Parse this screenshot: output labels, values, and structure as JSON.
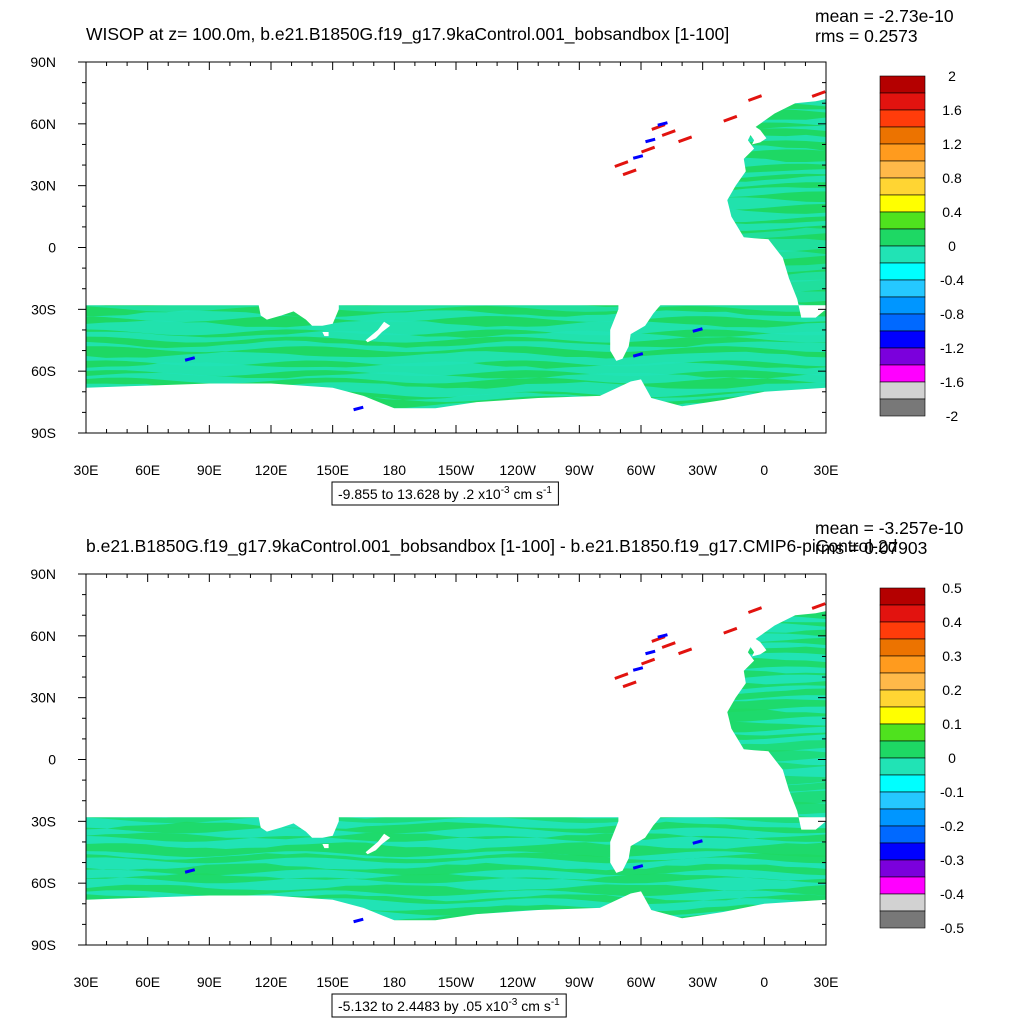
{
  "chart_data": [
    {
      "type": "heatmap",
      "title": "WISOP at z= 100.0m, b.e21.B1850G.f19_g17.9kaControl.001_bobsandbox [1-100]",
      "stats": {
        "mean": "mean = -2.73e-10",
        "rms": "rms = 0.2573"
      },
      "x_ticks": [
        "30E",
        "60E",
        "90E",
        "120E",
        "150E",
        "180",
        "150W",
        "120W",
        "90W",
        "60W",
        "30W",
        "0",
        "30E"
      ],
      "y_ticks": [
        "90N",
        "60N",
        "30N",
        "0",
        "30S",
        "60S",
        "90S"
      ],
      "colorbar": {
        "labels": [
          "2",
          "1.6",
          "1.2",
          "0.8",
          "0.4",
          "0",
          "-0.4",
          "-0.8",
          "-1.2",
          "-1.6",
          "-2"
        ],
        "colors": [
          "#b40000",
          "#e2130f",
          "#ff3c0a",
          "#ec7300",
          "#ff9b1e",
          "#ffb949",
          "#ffd533",
          "#ffff00",
          "#4fe21e",
          "#1ed864",
          "#21e3b5",
          "#00ffff",
          "#25c8ff",
          "#0096ff",
          "#0069ff",
          "#0000ff",
          "#7b00dc",
          "#ff00ff",
          "#d2d2d2",
          "#787878"
        ]
      },
      "range_caption": {
        "text": "-9.855 to 13.628 by .2 x10",
        "exp": "-3",
        "unit": " cm s",
        "unit_exp": "-1"
      },
      "base_color": "#1ed864",
      "secondary_color": "#21e3b5"
    },
    {
      "type": "heatmap",
      "title": "b.e21.B1850G.f19_g17.9kaControl.001_bobsandbox [1-100] - b.e21.B1850.f19_g17.CMIP6-piControl-2d",
      "stats": {
        "mean": "mean = -3.257e-10",
        "rms": "rms = 0.07903"
      },
      "x_ticks": [
        "30E",
        "60E",
        "90E",
        "120E",
        "150E",
        "180",
        "150W",
        "120W",
        "90W",
        "60W",
        "30W",
        "0",
        "30E"
      ],
      "y_ticks": [
        "90N",
        "60N",
        "30N",
        "0",
        "30S",
        "60S",
        "90S"
      ],
      "colorbar": {
        "labels": [
          "0.5",
          "0.4",
          "0.3",
          "0.2",
          "0.1",
          "0",
          "-0.1",
          "-0.2",
          "-0.3",
          "-0.4",
          "-0.5"
        ],
        "colors": [
          "#b40000",
          "#e2130f",
          "#ff3c0a",
          "#ec7300",
          "#ff9b1e",
          "#ffb949",
          "#ffd533",
          "#ffff00",
          "#4fe21e",
          "#1ed864",
          "#21e3b5",
          "#00ffff",
          "#25c8ff",
          "#0096ff",
          "#0069ff",
          "#0000ff",
          "#7b00dc",
          "#ff00ff",
          "#d2d2d2",
          "#787878"
        ]
      },
      "range_caption": {
        "text": "-5.132 to 2.4483 by .05 x10",
        "exp": "-3",
        "unit": " cm s",
        "unit_exp": "-1"
      },
      "base_color": "#21e3b5",
      "secondary_color": "#1ed864"
    }
  ]
}
